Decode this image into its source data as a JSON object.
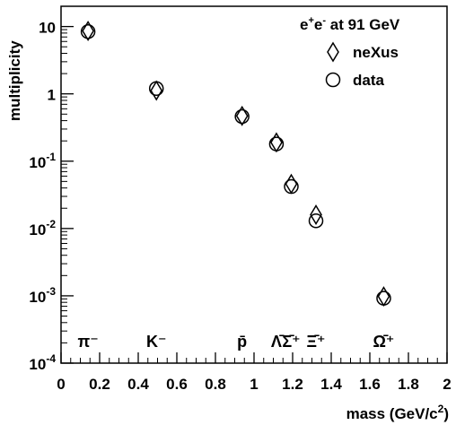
{
  "chart_data": {
    "type": "scatter",
    "title": "",
    "xlabel": "mass (GeV/c²)",
    "xlabel_parts": {
      "main": "mass (GeV/c",
      "sup": "2",
      "close": ")"
    },
    "ylabel": "multiplicity",
    "xlim": [
      0,
      2
    ],
    "ylim": [
      0.0001,
      20
    ],
    "yscale": "log",
    "x_ticks": [
      "0",
      "0.2",
      "0.4",
      "0.6",
      "0.8",
      "1",
      "1.2",
      "1.4",
      "1.6",
      "1.8",
      "2"
    ],
    "x_tick_values": [
      0,
      0.2,
      0.4,
      0.6,
      0.8,
      1,
      1.2,
      1.4,
      1.6,
      1.8,
      2
    ],
    "y_tick_values": [
      0.0001,
      0.001,
      0.01,
      0.1,
      1,
      10
    ],
    "y_ticks": [
      {
        "base": "10",
        "exp": "-4"
      },
      {
        "base": "10",
        "exp": "-3"
      },
      {
        "base": "10",
        "exp": "-2"
      },
      {
        "base": "10",
        "exp": "-1"
      },
      {
        "base": "1",
        "exp": ""
      },
      {
        "base": "10",
        "exp": ""
      }
    ],
    "legend_title": "e⁺e⁻ at 91 GeV",
    "legend_title_parts": {
      "e1": "e",
      "s1": "+",
      "e2": "e",
      "s2": "-",
      "rest": " at 91 GeV"
    },
    "legend_position": "top-right",
    "grid": false,
    "series": [
      {
        "name": "neXus",
        "marker": "diamond",
        "x": [
          0.14,
          0.494,
          0.938,
          1.116,
          1.193,
          1.321,
          1.672
        ],
        "y": [
          8.6,
          1.12,
          0.47,
          0.19,
          0.046,
          0.016,
          0.00098
        ]
      },
      {
        "name": "data",
        "marker": "circle",
        "x": [
          0.14,
          0.494,
          0.938,
          1.116,
          1.193,
          1.321,
          1.672
        ],
        "y": [
          8.4,
          1.2,
          0.46,
          0.18,
          0.042,
          0.013,
          0.00092
        ]
      }
    ],
    "particle_labels": [
      {
        "label": "π⁻",
        "x": 0.14
      },
      {
        "label": "K⁻",
        "x": 0.494
      },
      {
        "label": "p̄",
        "x": 0.938
      },
      {
        "label": "Λ̄",
        "x": 1.116
      },
      {
        "label": "Σ̄⁺",
        "x": 1.193
      },
      {
        "label": "Ξ̄⁺",
        "x": 1.321
      },
      {
        "label": "Ω̄⁺",
        "x": 1.672
      }
    ]
  }
}
